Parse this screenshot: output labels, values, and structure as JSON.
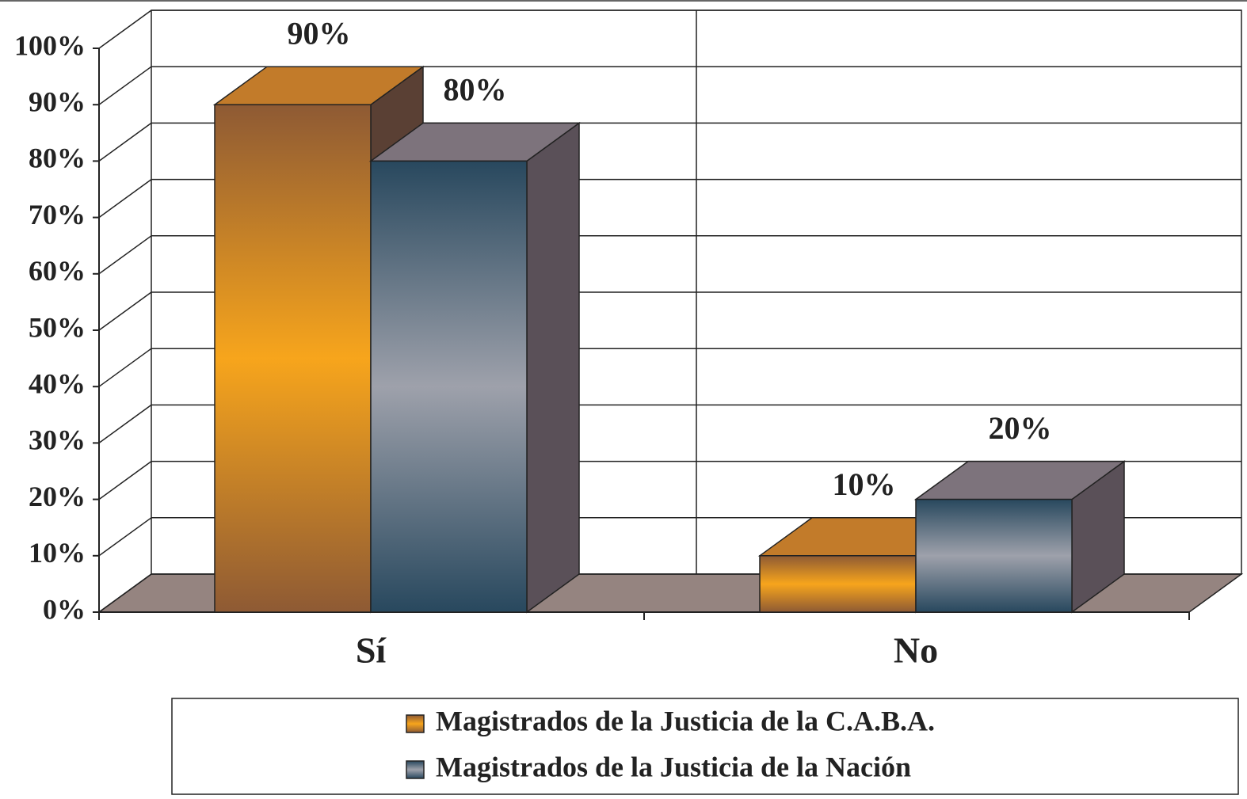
{
  "chart_data": {
    "type": "bar3d",
    "categories": [
      "Sí",
      "No"
    ],
    "series": [
      {
        "name": "Magistrados de la Justicia de la C.A.B.A.",
        "color": "#f5a31d",
        "values": [
          90,
          10
        ],
        "value_labels": [
          "90%",
          "10%"
        ]
      },
      {
        "name": "Magistrados de la Justicia de la Nación",
        "color": "#9b9ea8",
        "values": [
          80,
          20
        ],
        "value_labels": [
          "80%",
          "20%"
        ]
      }
    ],
    "ylim": [
      0,
      100
    ],
    "yticks": [
      {
        "value": 0,
        "label": "0%"
      },
      {
        "value": 10,
        "label": "10%"
      },
      {
        "value": 20,
        "label": "20%"
      },
      {
        "value": 30,
        "label": "30%"
      },
      {
        "value": 40,
        "label": "40%"
      },
      {
        "value": 50,
        "label": "50%"
      },
      {
        "value": 60,
        "label": "60%"
      },
      {
        "value": 70,
        "label": "70%"
      },
      {
        "value": 80,
        "label": "80%"
      },
      {
        "value": 90,
        "label": "90%"
      },
      {
        "value": 100,
        "label": "100%"
      }
    ],
    "grid": true,
    "legend": "bottom"
  }
}
